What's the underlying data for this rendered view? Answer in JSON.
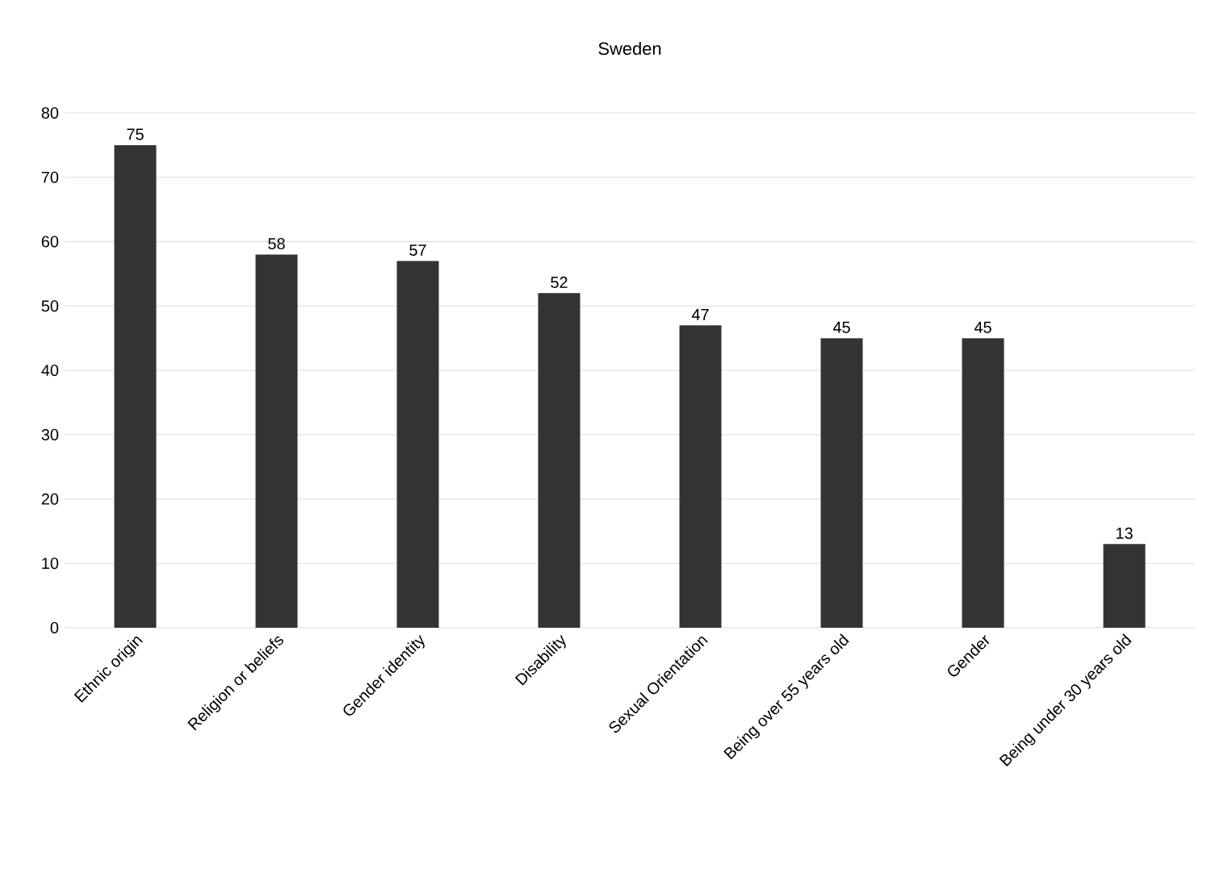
{
  "chart_data": {
    "type": "bar",
    "title": "Sweden",
    "categories": [
      "Ethnic origin",
      "Religion or beliefs",
      "Gender identity",
      "Disability",
      "Sexual Orientation",
      "Being over 55 years old",
      "Gender",
      "Being under 30 years old"
    ],
    "values": [
      75,
      58,
      57,
      52,
      47,
      45,
      45,
      13
    ],
    "color": "#333333",
    "ylim": [
      0,
      80
    ],
    "yticks": [
      0,
      10,
      20,
      30,
      40,
      50,
      60,
      70,
      80
    ],
    "grid": "y",
    "data_labels": true
  }
}
